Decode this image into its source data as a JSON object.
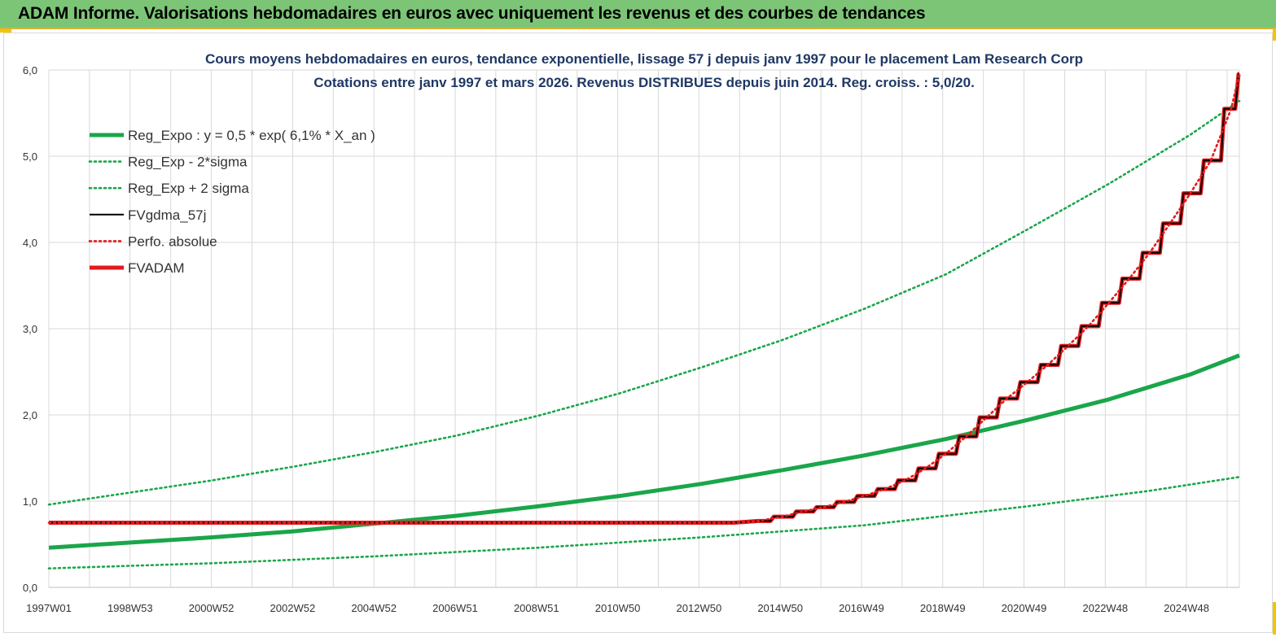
{
  "header": {
    "title": "ADAM Informe. Valorisations hebdomadaires en euros avec uniquement les revenus et des courbes de tendances"
  },
  "chart_data": {
    "type": "line",
    "title": "Cours moyens hebdomadaires en euros, tendance exponentielle, lissage 57 j depuis janv 1997 pour le placement Lam Research Corp",
    "subtitle": "Cotations entre janv 1997 et mars 2026. Revenus DISTRIBUES depuis juin 2014. Reg. croiss. : 5,0/20.",
    "x_ticks": [
      "1997W01",
      "1998W53",
      "2000W52",
      "2002W52",
      "2004W52",
      "2006W51",
      "2008W51",
      "2010W50",
      "2012W50",
      "2014W50",
      "2016W49",
      "2018W49",
      "2020W49",
      "2022W48",
      "2024W48"
    ],
    "x_range": [
      1997.0,
      2026.2
    ],
    "ylim": [
      0,
      6
    ],
    "y_ticks": [
      "0,0",
      "1,0",
      "2,0",
      "3,0",
      "4,0",
      "5,0",
      "6,0"
    ],
    "grid": true,
    "legend_position": "top-left",
    "series": [
      {
        "name": "Reg_Expo : y = 0,5 * exp( 6,1% *  X_an )",
        "color": "#1aa64a",
        "style": "solid-thick",
        "x": [
          1997.0,
          1999.0,
          2001.0,
          2003.0,
          2005.0,
          2007.0,
          2009.0,
          2011.0,
          2013.0,
          2015.0,
          2017.0,
          2019.0,
          2021.0,
          2023.0,
          2025.0,
          2026.2
        ],
        "y": [
          0.46,
          0.52,
          0.58,
          0.65,
          0.74,
          0.83,
          0.94,
          1.06,
          1.2,
          1.36,
          1.53,
          1.72,
          1.94,
          2.18,
          2.47,
          2.69
        ]
      },
      {
        "name": "Reg_Exp - 2*sigma",
        "color": "#1aa64a",
        "style": "dotted",
        "x": [
          1997.0,
          2001.0,
          2005.0,
          2009.0,
          2013.0,
          2017.0,
          2021.0,
          2024.0,
          2026.2
        ],
        "y": [
          0.22,
          0.28,
          0.36,
          0.46,
          0.58,
          0.72,
          0.94,
          1.12,
          1.28
        ]
      },
      {
        "name": "Reg_Exp + 2 sigma",
        "color": "#1aa64a",
        "style": "dotted",
        "x": [
          1997.0,
          1999.0,
          2001.0,
          2003.0,
          2005.0,
          2007.0,
          2009.0,
          2011.0,
          2013.0,
          2015.0,
          2017.0,
          2019.0,
          2021.0,
          2023.0,
          2025.0,
          2026.2
        ],
        "y": [
          0.96,
          1.1,
          1.24,
          1.4,
          1.57,
          1.76,
          1.99,
          2.25,
          2.55,
          2.87,
          3.23,
          3.63,
          4.15,
          4.68,
          5.25,
          5.64
        ]
      },
      {
        "name": "FVgdma_57j",
        "color": "#000000",
        "style": "solid-thin",
        "x": [
          1997.0,
          2013.8,
          2014.4,
          2015.0,
          2015.5,
          2016.0,
          2016.5,
          2017.0,
          2017.5,
          2018.0,
          2018.5,
          2019.0,
          2019.5,
          2020.0,
          2020.5,
          2021.0,
          2021.5,
          2022.0,
          2022.5,
          2023.0,
          2023.5,
          2024.0,
          2024.5,
          2025.0,
          2025.5,
          2026.0,
          2026.2
        ],
        "y": [
          0.75,
          0.75,
          0.77,
          0.82,
          0.88,
          0.93,
          0.99,
          1.06,
          1.14,
          1.24,
          1.38,
          1.55,
          1.75,
          1.97,
          2.19,
          2.38,
          2.58,
          2.8,
          3.03,
          3.3,
          3.58,
          3.88,
          4.22,
          4.57,
          4.95,
          5.55,
          5.95
        ]
      },
      {
        "name": "Perfo. absolue",
        "color": "#e31a1c",
        "style": "dotted",
        "x": [
          1997.0,
          2013.8,
          2014.4,
          2015.0,
          2015.5,
          2016.0,
          2016.5,
          2017.0,
          2017.5,
          2018.0,
          2018.5,
          2019.0,
          2019.5,
          2020.0,
          2020.5,
          2021.0,
          2021.5,
          2022.0,
          2022.5,
          2023.0,
          2023.5,
          2024.0,
          2024.5,
          2025.0,
          2025.5,
          2026.0,
          2026.2
        ],
        "y": [
          0.75,
          0.75,
          0.77,
          0.82,
          0.88,
          0.93,
          0.99,
          1.06,
          1.14,
          1.24,
          1.38,
          1.55,
          1.75,
          1.97,
          2.19,
          2.38,
          2.58,
          2.8,
          3.03,
          3.3,
          3.58,
          3.88,
          4.22,
          4.57,
          4.95,
          5.55,
          5.95
        ]
      },
      {
        "name": "FVADAM",
        "color": "#e31a1c",
        "style": "solid-thick",
        "x": [
          1997.0,
          2013.8,
          2014.4,
          2015.0,
          2015.5,
          2016.0,
          2016.5,
          2017.0,
          2017.5,
          2018.0,
          2018.5,
          2019.0,
          2019.5,
          2020.0,
          2020.5,
          2021.0,
          2021.5,
          2022.0,
          2022.5,
          2023.0,
          2023.5,
          2024.0,
          2024.5,
          2025.0,
          2025.5,
          2026.0,
          2026.2
        ],
        "y": [
          0.75,
          0.75,
          0.77,
          0.82,
          0.88,
          0.93,
          0.99,
          1.06,
          1.14,
          1.24,
          1.38,
          1.55,
          1.75,
          1.97,
          2.19,
          2.38,
          2.58,
          2.8,
          3.03,
          3.3,
          3.58,
          3.88,
          4.22,
          4.57,
          4.95,
          5.55,
          5.95
        ]
      }
    ]
  }
}
